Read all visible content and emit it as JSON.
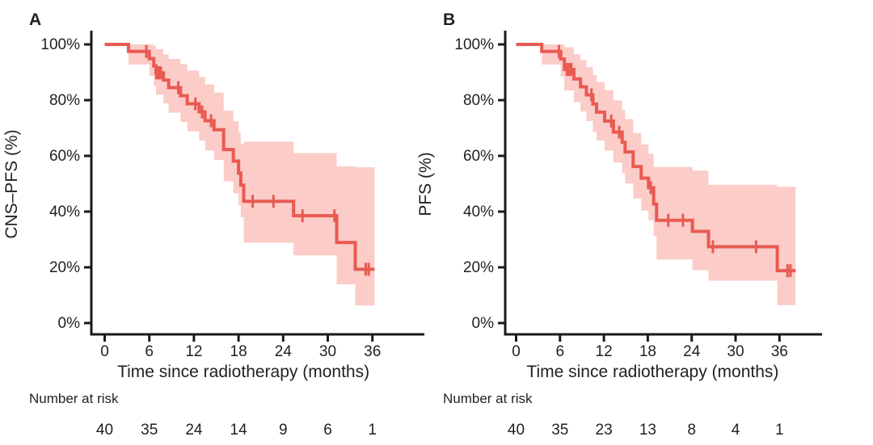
{
  "figure": {
    "background": "#ffffff",
    "colors": {
      "line": "#e85a52",
      "band": "#fbccc8",
      "axis": "#1a1a1a",
      "text": "#231f20"
    }
  },
  "chart_data": [
    {
      "type": "line",
      "subtype": "kaplan-meier-step-with-confidence-band",
      "panel_letter": "A",
      "ylabel": "CNS–PFS (%)",
      "xlabel": "Time since radiotherapy (months)",
      "risk_label": "Number at risk",
      "legend_position": "none",
      "grid": false,
      "xlim": [
        0,
        42
      ],
      "ylim": [
        0,
        100
      ],
      "xticks": [
        0,
        6,
        12,
        18,
        24,
        30,
        36
      ],
      "ytick_values": [
        100,
        80,
        60,
        40,
        20,
        0
      ],
      "ytick_labels": [
        "100%",
        "80%",
        "60%",
        "40%",
        "20%",
        "0%"
      ],
      "end_time": 36.3,
      "steps": [
        [
          0,
          100
        ],
        [
          3.2,
          97.5
        ],
        [
          6.0,
          94.9
        ],
        [
          6.6,
          92.3
        ],
        [
          6.9,
          89.8
        ],
        [
          7.9,
          87.2
        ],
        [
          8.6,
          84.5
        ],
        [
          10.2,
          81.6
        ],
        [
          11.1,
          78.7
        ],
        [
          12.7,
          75.8
        ],
        [
          13.5,
          72.6
        ],
        [
          14.7,
          69.4
        ],
        [
          16.0,
          62.3
        ],
        [
          17.3,
          58.1
        ],
        [
          18.0,
          53.8
        ],
        [
          18.3,
          49.5
        ],
        [
          18.7,
          43.7
        ],
        [
          25.4,
          38.5
        ],
        [
          31.2,
          28.9
        ],
        [
          33.7,
          19.3
        ]
      ],
      "band": [
        [
          3.2,
          92.8,
          100
        ],
        [
          6.0,
          88.7,
          100
        ],
        [
          6.6,
          85.2,
          99.6
        ],
        [
          6.9,
          82.0,
          98.3
        ],
        [
          7.9,
          78.8,
          96.4
        ],
        [
          8.6,
          75.5,
          94.8
        ],
        [
          10.2,
          72.1,
          92.9
        ],
        [
          11.1,
          68.8,
          90.6
        ],
        [
          12.7,
          65.5,
          88.3
        ],
        [
          13.5,
          62.0,
          85.6
        ],
        [
          14.7,
          58.5,
          82.7
        ],
        [
          16.0,
          50.9,
          76.2
        ],
        [
          17.3,
          46.6,
          72.4
        ],
        [
          18.0,
          42.2,
          68.4
        ],
        [
          18.3,
          38.0,
          64.3
        ],
        [
          18.7,
          28.8,
          65.1
        ],
        [
          25.4,
          24.3,
          61.0
        ],
        [
          31.2,
          13.9,
          56.2
        ],
        [
          33.7,
          6.3,
          55.9
        ]
      ],
      "censors": [
        [
          5.6,
          97.5
        ],
        [
          6.95,
          89.8
        ],
        [
          7.15,
          89.8
        ],
        [
          7.35,
          89.8
        ],
        [
          7.55,
          89.8
        ],
        [
          9.9,
          84.5
        ],
        [
          12.2,
          78.7
        ],
        [
          13.1,
          75.8
        ],
        [
          14.3,
          72.6
        ],
        [
          19.9,
          43.7
        ],
        [
          22.7,
          43.7
        ],
        [
          26.6,
          38.5
        ],
        [
          30.9,
          38.5
        ],
        [
          35.1,
          19.3
        ],
        [
          35.5,
          19.3
        ]
      ],
      "risk_times": [
        0,
        6,
        12,
        18,
        24,
        30,
        36
      ],
      "number_at_risk": [
        40,
        35,
        24,
        14,
        9,
        6,
        1
      ]
    },
    {
      "type": "line",
      "subtype": "kaplan-meier-step-with-confidence-band",
      "panel_letter": "B",
      "ylabel": "PFS (%)",
      "xlabel": "Time since radiotherapy (months)",
      "risk_label": "Number at risk",
      "legend_position": "none",
      "grid": false,
      "xlim": [
        0,
        42
      ],
      "ylim": [
        0,
        100
      ],
      "xticks": [
        0,
        6,
        12,
        18,
        24,
        30,
        36
      ],
      "ytick_values": [
        100,
        80,
        60,
        40,
        20,
        0
      ],
      "ytick_labels": [
        "100%",
        "80%",
        "60%",
        "40%",
        "20%",
        "0%"
      ],
      "end_time": 38.2,
      "steps": [
        [
          0,
          100
        ],
        [
          3.5,
          97.5
        ],
        [
          6.1,
          94.8
        ],
        [
          6.6,
          91.0
        ],
        [
          7.9,
          87.6
        ],
        [
          8.8,
          84.8
        ],
        [
          9.6,
          81.9
        ],
        [
          10.5,
          78.6
        ],
        [
          11.0,
          75.7
        ],
        [
          12.1,
          72.5
        ],
        [
          13.3,
          68.5
        ],
        [
          14.5,
          64.9
        ],
        [
          14.9,
          61.4
        ],
        [
          16.0,
          56.2
        ],
        [
          17.1,
          52.0
        ],
        [
          18.1,
          48.6
        ],
        [
          18.8,
          42.7
        ],
        [
          19.2,
          36.9
        ],
        [
          24.1,
          32.9
        ],
        [
          26.3,
          27.4
        ],
        [
          35.7,
          18.8
        ]
      ],
      "band": [
        [
          3.5,
          92.8,
          100
        ],
        [
          6.1,
          88.5,
          100
        ],
        [
          6.6,
          83.5,
          99.0
        ],
        [
          7.9,
          79.3,
          96.5
        ],
        [
          8.8,
          75.9,
          94.3
        ],
        [
          9.6,
          72.5,
          91.8
        ],
        [
          10.5,
          68.7,
          89.0
        ],
        [
          11.0,
          65.5,
          86.5
        ],
        [
          12.1,
          61.9,
          83.6
        ],
        [
          13.3,
          57.6,
          79.9
        ],
        [
          14.5,
          53.8,
          76.5
        ],
        [
          14.9,
          50.1,
          73.2
        ],
        [
          16.0,
          44.7,
          68.2
        ],
        [
          17.1,
          40.4,
          64.1
        ],
        [
          18.1,
          36.9,
          60.8
        ],
        [
          18.8,
          31.2,
          56.0
        ],
        [
          19.2,
          22.8,
          56.0
        ],
        [
          24.1,
          19.0,
          54.7
        ],
        [
          26.3,
          15.2,
          49.6
        ],
        [
          35.7,
          6.4,
          48.9
        ]
      ],
      "censors": [
        [
          5.85,
          97.5
        ],
        [
          6.95,
          91.0
        ],
        [
          7.25,
          91.0
        ],
        [
          7.55,
          91.0
        ],
        [
          10.3,
          81.9
        ],
        [
          13.0,
          72.5
        ],
        [
          14.1,
          68.5
        ],
        [
          18.4,
          48.6
        ],
        [
          20.8,
          36.9
        ],
        [
          22.8,
          36.9
        ],
        [
          26.9,
          27.4
        ],
        [
          32.8,
          27.4
        ],
        [
          37.1,
          18.8
        ],
        [
          37.5,
          18.8
        ]
      ],
      "risk_times": [
        0,
        6,
        12,
        18,
        24,
        30,
        36
      ],
      "number_at_risk": [
        40,
        35,
        23,
        13,
        8,
        4,
        1
      ]
    }
  ]
}
